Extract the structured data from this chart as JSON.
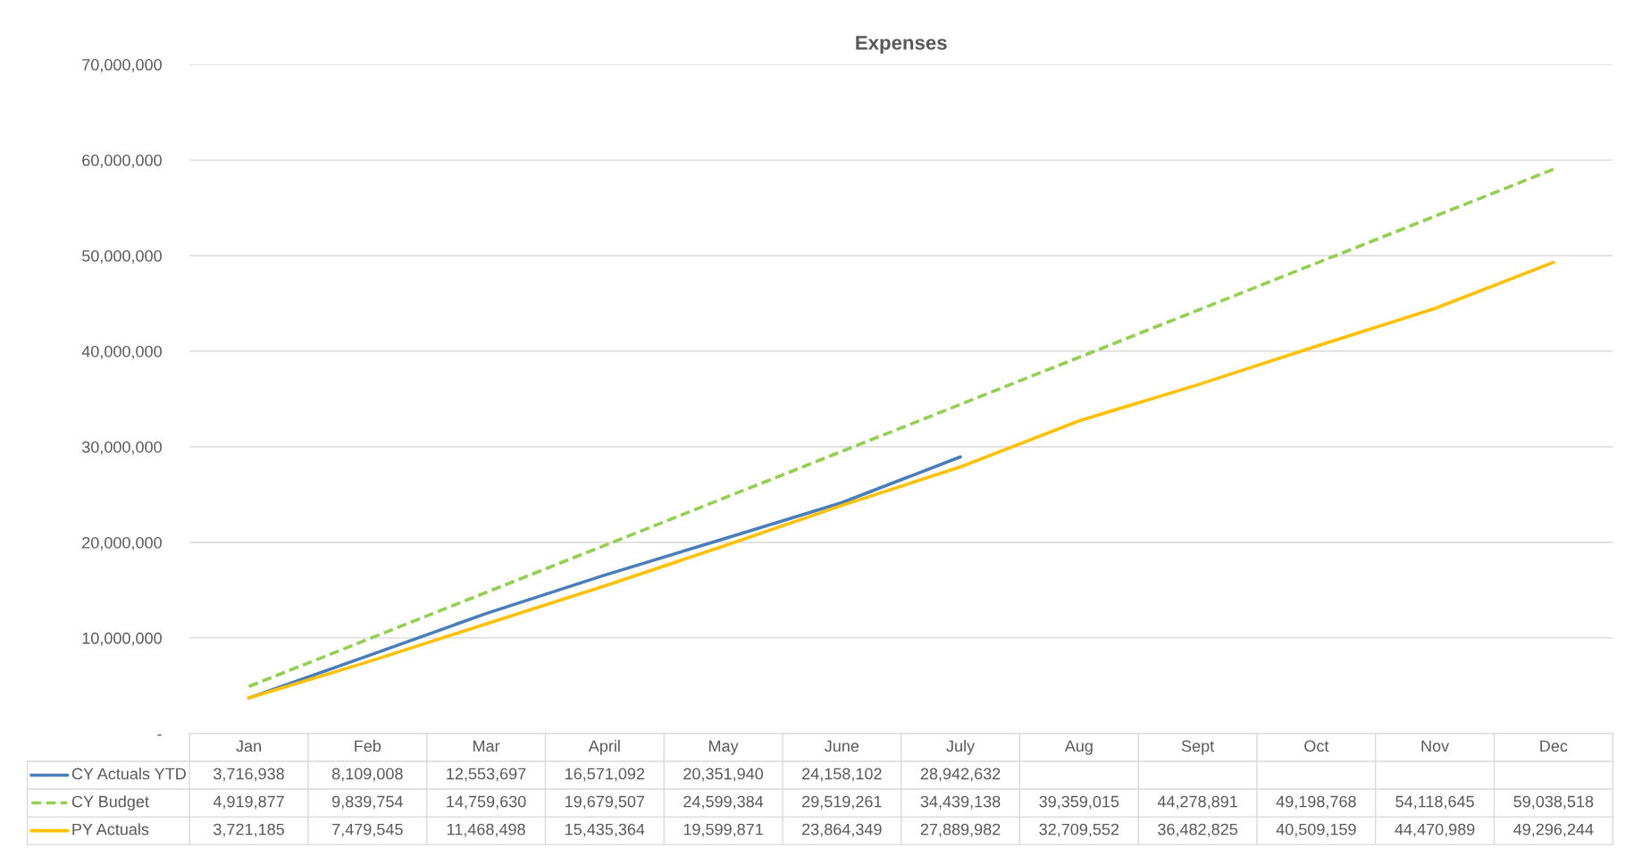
{
  "chart_data": {
    "type": "line",
    "title": "Expenses",
    "categories": [
      "Jan",
      "Feb",
      "Mar",
      "April",
      "May",
      "June",
      "July",
      "Aug",
      "Sept",
      "Oct",
      "Nov",
      "Dec"
    ],
    "series": [
      {
        "name": "CY Actuals YTD",
        "color": "#4a7ebb",
        "line_style": "solid",
        "values": [
          3716938,
          8109008,
          12553697,
          16571092,
          20351940,
          24158102,
          28942632,
          null,
          null,
          null,
          null,
          null
        ],
        "value_labels": [
          "3,716,938",
          "8,109,008",
          "12,553,697",
          "16,571,092",
          "20,351,940",
          "24,158,102",
          "28,942,632",
          null,
          null,
          null,
          null,
          null
        ]
      },
      {
        "name": "CY Budget",
        "color": "#92d050",
        "line_style": "dashed",
        "values": [
          4919877,
          9839754,
          14759630,
          19679507,
          24599384,
          29519261,
          34439138,
          39359015,
          44278891,
          49198768,
          54118645,
          59038518
        ],
        "value_labels": [
          "4,919,877",
          "9,839,754",
          "14,759,630",
          "19,679,507",
          "24,599,384",
          "29,519,261",
          "34,439,138",
          "39,359,015",
          "44,278,891",
          "49,198,768",
          "54,118,645",
          "59,038,518"
        ]
      },
      {
        "name": "PY Actuals",
        "color": "#ffc000",
        "line_style": "solid",
        "values": [
          3721185,
          7479545,
          11468498,
          15435364,
          19599871,
          23864349,
          27889982,
          32709552,
          36482825,
          40509159,
          44470989,
          49296244
        ],
        "value_labels": [
          "3,721,185",
          "7,479,545",
          "11,468,498",
          "15,435,364",
          "19,599,871",
          "23,864,349",
          "27,889,982",
          "32,709,552",
          "36,482,825",
          "40,509,159",
          "44,470,989",
          "49,296,244"
        ]
      }
    ],
    "ylim": [
      0,
      70000000
    ],
    "yticks": [
      {
        "value": 0,
        "label": "-"
      },
      {
        "value": 10000000,
        "label": "10,000,000"
      },
      {
        "value": 20000000,
        "label": "20,000,000"
      },
      {
        "value": 30000000,
        "label": "30,000,000"
      },
      {
        "value": 40000000,
        "label": "40,000,000"
      },
      {
        "value": 50000000,
        "label": "50,000,000"
      },
      {
        "value": 60000000,
        "label": "60,000,000"
      },
      {
        "value": 70000000,
        "label": "70,000,000"
      }
    ],
    "grid": "y",
    "legend": "bottom left"
  }
}
